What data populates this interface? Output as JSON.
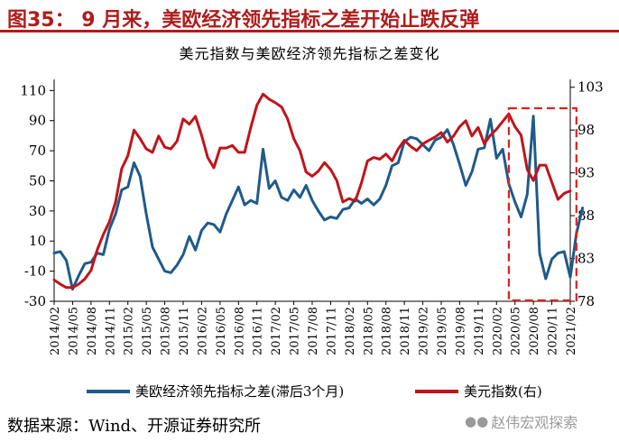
{
  "figure_title": "图35：  9 月来，美欧经济领先指标之差开始止跌反弹",
  "source": "数据来源：Wind、开源证券研究所",
  "watermark": "赵伟宏观探索",
  "colors": {
    "title_red": "#b01c1c",
    "diff_line": "#1f5a8a",
    "dxy_line": "#c0141a",
    "highlight_box": "#e0201b"
  },
  "chart_data": {
    "type": "line",
    "title": "美元指数与美欧经济领先指标之差变化",
    "xlabel": "",
    "x_tick_labels": [
      "2014/02",
      "2014/05",
      "2014/08",
      "2014/11",
      "2015/02",
      "2015/05",
      "2015/08",
      "2015/11",
      "2016/02",
      "2016/05",
      "2016/08",
      "2016/11",
      "2017/02",
      "2017/05",
      "2017/08",
      "2017/11",
      "2018/02",
      "2018/05",
      "2018/08",
      "2018/11",
      "2019/02",
      "2019/05",
      "2019/08",
      "2019/11",
      "2020/02",
      "2020/05",
      "2020/08",
      "2020/11",
      "2021/02"
    ],
    "x_range": [
      "2014-02",
      "2021-02"
    ],
    "y_left": {
      "label": "",
      "ticks": [
        -30,
        -10,
        10,
        30,
        50,
        70,
        90,
        110
      ],
      "range": [
        -30,
        115
      ]
    },
    "y_right": {
      "label": "",
      "ticks": [
        78,
        83,
        88,
        93,
        98,
        103
      ],
      "range": [
        78,
        103.5
      ]
    },
    "grid": false,
    "legend_position": "bottom",
    "highlight": {
      "from": "2020-04",
      "to": "2021-03",
      "style": "dashed-box"
    },
    "series": [
      {
        "name": "美欧经济领先指标之差(滞后3个月)",
        "axis": "left",
        "points": [
          [
            "2014-02",
            2
          ],
          [
            "2014-03",
            3
          ],
          [
            "2014-04",
            -3
          ],
          [
            "2014-05",
            -22
          ],
          [
            "2014-06",
            -13
          ],
          [
            "2014-07",
            -5
          ],
          [
            "2014-08",
            -4
          ],
          [
            "2014-09",
            2
          ],
          [
            "2014-10",
            1
          ],
          [
            "2014-11",
            18
          ],
          [
            "2014-12",
            28
          ],
          [
            "2015-01",
            44
          ],
          [
            "2015-02",
            46
          ],
          [
            "2015-03",
            62
          ],
          [
            "2015-04",
            53
          ],
          [
            "2015-05",
            28
          ],
          [
            "2015-06",
            6
          ],
          [
            "2015-07",
            -2
          ],
          [
            "2015-08",
            -10
          ],
          [
            "2015-09",
            -11
          ],
          [
            "2015-10",
            -6
          ],
          [
            "2015-11",
            1
          ],
          [
            "2015-12",
            13
          ],
          [
            "2016-01",
            4
          ],
          [
            "2016-02",
            17
          ],
          [
            "2016-03",
            22
          ],
          [
            "2016-04",
            21
          ],
          [
            "2016-05",
            16
          ],
          [
            "2016-06",
            28
          ],
          [
            "2016-07",
            37
          ],
          [
            "2016-08",
            46
          ],
          [
            "2016-09",
            34
          ],
          [
            "2016-10",
            37
          ],
          [
            "2016-11",
            35
          ],
          [
            "2016-12",
            71
          ],
          [
            "2017-01",
            45
          ],
          [
            "2017-02",
            50
          ],
          [
            "2017-03",
            39
          ],
          [
            "2017-04",
            37
          ],
          [
            "2017-05",
            44
          ],
          [
            "2017-06",
            39
          ],
          [
            "2017-07",
            47
          ],
          [
            "2017-08",
            37
          ],
          [
            "2017-09",
            30
          ],
          [
            "2017-10",
            24
          ],
          [
            "2017-11",
            26
          ],
          [
            "2017-12",
            25
          ],
          [
            "2018-01",
            31
          ],
          [
            "2018-02",
            32
          ],
          [
            "2018-03",
            38
          ],
          [
            "2018-04",
            35
          ],
          [
            "2018-05",
            38
          ],
          [
            "2018-06",
            34
          ],
          [
            "2018-07",
            38
          ],
          [
            "2018-08",
            47
          ],
          [
            "2018-09",
            60
          ],
          [
            "2018-10",
            62
          ],
          [
            "2018-11",
            76
          ],
          [
            "2018-12",
            79
          ],
          [
            "2019-01",
            78
          ],
          [
            "2019-02",
            74
          ],
          [
            "2019-03",
            70
          ],
          [
            "2019-04",
            77
          ],
          [
            "2019-05",
            79
          ],
          [
            "2019-06",
            84
          ],
          [
            "2019-07",
            74
          ],
          [
            "2019-08",
            61
          ],
          [
            "2019-09",
            47
          ],
          [
            "2019-10",
            56
          ],
          [
            "2019-11",
            71
          ],
          [
            "2019-12",
            72
          ],
          [
            "2020-01",
            91
          ],
          [
            "2020-02",
            65
          ],
          [
            "2020-03",
            71
          ],
          [
            "2020-04",
            48
          ],
          [
            "2020-05",
            36
          ],
          [
            "2020-06",
            26
          ],
          [
            "2020-07",
            41
          ],
          [
            "2020-08",
            93
          ],
          [
            "2020-09",
            2
          ],
          [
            "2020-10",
            -15
          ],
          [
            "2020-11",
            -2
          ],
          [
            "2020-12",
            2
          ],
          [
            "2021-01",
            3
          ],
          [
            "2021-02",
            -14
          ],
          [
            "2021-03",
            15
          ],
          [
            "2021-04",
            32
          ]
        ]
      },
      {
        "name": "美元指数(右)",
        "axis": "right",
        "points": [
          [
            "2014-02",
            80.5
          ],
          [
            "2014-03",
            80.0
          ],
          [
            "2014-04",
            79.6
          ],
          [
            "2014-05",
            79.6
          ],
          [
            "2014-06",
            80.0
          ],
          [
            "2014-07",
            80.6
          ],
          [
            "2014-08",
            81.6
          ],
          [
            "2014-09",
            84.0
          ],
          [
            "2014-10",
            85.8
          ],
          [
            "2014-11",
            87.3
          ],
          [
            "2014-12",
            89.6
          ],
          [
            "2015-01",
            93.5
          ],
          [
            "2015-02",
            95.0
          ],
          [
            "2015-03",
            98.0
          ],
          [
            "2015-04",
            97.0
          ],
          [
            "2015-05",
            95.8
          ],
          [
            "2015-06",
            95.4
          ],
          [
            "2015-07",
            97.3
          ],
          [
            "2015-08",
            96.0
          ],
          [
            "2015-09",
            95.8
          ],
          [
            "2015-10",
            96.7
          ],
          [
            "2015-11",
            99.3
          ],
          [
            "2015-12",
            98.7
          ],
          [
            "2016-01",
            99.6
          ],
          [
            "2016-02",
            97.4
          ],
          [
            "2016-03",
            94.8
          ],
          [
            "2016-04",
            93.6
          ],
          [
            "2016-05",
            95.9
          ],
          [
            "2016-06",
            95.9
          ],
          [
            "2016-07",
            96.2
          ],
          [
            "2016-08",
            95.4
          ],
          [
            "2016-09",
            95.4
          ],
          [
            "2016-10",
            98.3
          ],
          [
            "2016-11",
            100.9
          ],
          [
            "2016-12",
            102.2
          ],
          [
            "2017-01",
            101.6
          ],
          [
            "2017-02",
            101.2
          ],
          [
            "2017-03",
            100.7
          ],
          [
            "2017-04",
            99.3
          ],
          [
            "2017-05",
            97.0
          ],
          [
            "2017-06",
            95.6
          ],
          [
            "2017-07",
            93.1
          ],
          [
            "2017-08",
            92.6
          ],
          [
            "2017-09",
            93.2
          ],
          [
            "2017-10",
            94.2
          ],
          [
            "2017-11",
            93.4
          ],
          [
            "2017-12",
            92.1
          ],
          [
            "2018-01",
            89.6
          ],
          [
            "2018-02",
            90.0
          ],
          [
            "2018-03",
            89.7
          ],
          [
            "2018-04",
            91.8
          ],
          [
            "2018-05",
            94.4
          ],
          [
            "2018-06",
            94.8
          ],
          [
            "2018-07",
            94.6
          ],
          [
            "2018-08",
            95.2
          ],
          [
            "2018-09",
            94.4
          ],
          [
            "2018-10",
            95.8
          ],
          [
            "2018-11",
            96.8
          ],
          [
            "2018-12",
            96.1
          ],
          [
            "2019-01",
            95.6
          ],
          [
            "2019-02",
            96.4
          ],
          [
            "2019-03",
            96.8
          ],
          [
            "2019-04",
            97.2
          ],
          [
            "2019-05",
            97.7
          ],
          [
            "2019-06",
            96.6
          ],
          [
            "2019-07",
            97.3
          ],
          [
            "2019-08",
            98.4
          ],
          [
            "2019-09",
            99.1
          ],
          [
            "2019-10",
            97.3
          ],
          [
            "2019-11",
            98.3
          ],
          [
            "2019-12",
            96.4
          ],
          [
            "2020-01",
            97.4
          ],
          [
            "2020-02",
            98.1
          ],
          [
            "2020-03",
            99.0
          ],
          [
            "2020-04",
            99.9
          ],
          [
            "2020-05",
            98.4
          ],
          [
            "2020-06",
            97.4
          ],
          [
            "2020-07",
            93.4
          ],
          [
            "2020-08",
            92.1
          ],
          [
            "2020-09",
            93.9
          ],
          [
            "2020-10",
            93.9
          ],
          [
            "2020-11",
            91.9
          ],
          [
            "2020-12",
            89.9
          ],
          [
            "2021-01",
            90.6
          ],
          [
            "2021-02",
            90.9
          ]
        ]
      }
    ]
  }
}
